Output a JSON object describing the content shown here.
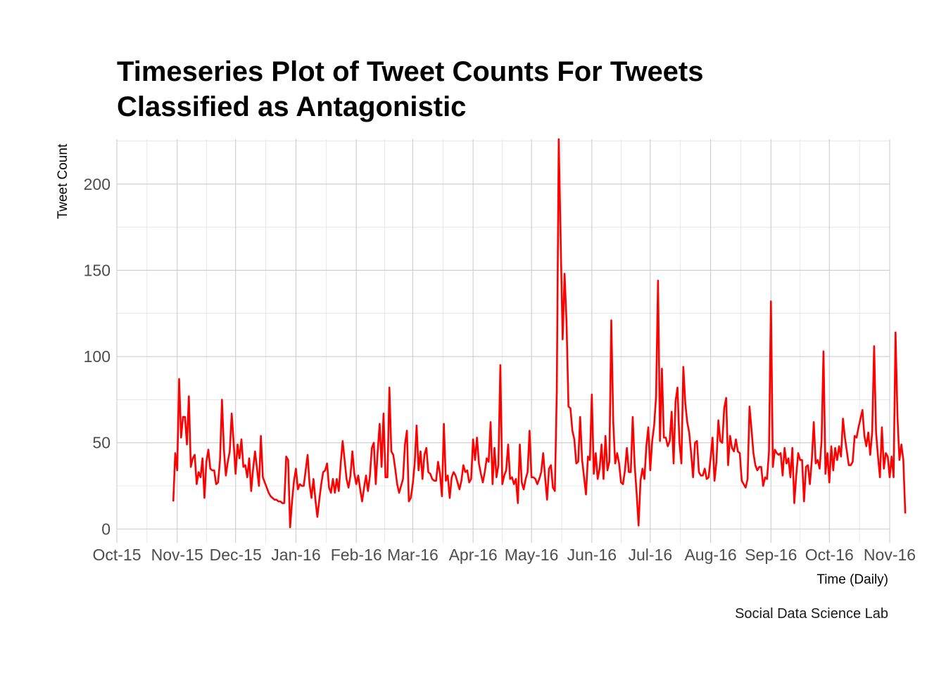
{
  "chart_data": {
    "type": "line",
    "title_lines": [
      "Timeseries Plot of Tweet Counts For Tweets",
      "Classified as Antagonistic"
    ],
    "xlabel": "Time (Daily)",
    "ylabel": "Tweet Count",
    "caption": "Social Data Science Lab",
    "x_start": "2015-10-30",
    "x_step_days": 1,
    "xlim": [
      "2015-10-01",
      "2016-11-01"
    ],
    "ylim": [
      -8,
      226
    ],
    "x_ticks": [
      {
        "date": "2015-10-01",
        "label": "Oct-15"
      },
      {
        "date": "2015-11-01",
        "label": "Nov-15"
      },
      {
        "date": "2015-12-01",
        "label": "Dec-15"
      },
      {
        "date": "2016-01-01",
        "label": "Jan-16"
      },
      {
        "date": "2016-02-01",
        "label": "Feb-16"
      },
      {
        "date": "2016-03-01",
        "label": "Mar-16"
      },
      {
        "date": "2016-04-01",
        "label": "Apr-16"
      },
      {
        "date": "2016-05-01",
        "label": "May-16"
      },
      {
        "date": "2016-06-01",
        "label": "Jun-16"
      },
      {
        "date": "2016-07-01",
        "label": "Jul-16"
      },
      {
        "date": "2016-08-01",
        "label": "Aug-16"
      },
      {
        "date": "2016-09-01",
        "label": "Sep-16"
      },
      {
        "date": "2016-10-01",
        "label": "Oct-16"
      },
      {
        "date": "2016-11-01",
        "label": "Nov-16"
      }
    ],
    "y_ticks": [
      0,
      50,
      100,
      150,
      200
    ],
    "grid": true,
    "legend": "none",
    "series": [
      {
        "color": "#ff0000",
        "values": [
          16,
          44,
          34,
          87,
          53,
          65,
          65,
          49,
          77,
          36,
          41,
          43,
          26,
          33,
          30,
          41,
          18,
          39,
          46,
          35,
          34,
          34,
          26,
          27,
          40,
          75,
          46,
          31,
          39,
          45,
          67,
          50,
          32,
          49,
          41,
          52,
          36,
          37,
          30,
          41,
          22,
          35,
          45,
          35,
          25,
          54,
          30,
          27,
          24,
          21,
          19,
          18,
          17,
          17,
          16,
          16,
          15,
          15,
          42,
          40,
          1,
          16,
          28,
          35,
          23,
          26,
          25,
          25,
          34,
          43,
          26,
          18,
          29,
          17,
          7,
          17,
          26,
          33,
          34,
          38,
          24,
          21,
          29,
          21,
          29,
          22,
          38,
          51,
          40,
          29,
          24,
          31,
          45,
          32,
          26,
          31,
          23,
          16,
          24,
          31,
          22,
          31,
          47,
          50,
          26,
          45,
          61,
          36,
          67,
          30,
          30,
          82,
          45,
          43,
          35,
          26,
          21,
          25,
          29,
          49,
          57,
          16,
          18,
          26,
          38,
          60,
          34,
          45,
          29,
          43,
          47,
          33,
          32,
          29,
          28,
          28,
          39,
          32,
          19,
          61,
          28,
          31,
          18,
          30,
          33,
          31,
          27,
          23,
          28,
          37,
          33,
          34,
          27,
          29,
          52,
          40,
          53,
          38,
          32,
          27,
          33,
          41,
          39,
          62,
          26,
          47,
          30,
          37,
          95,
          26,
          31,
          34,
          49,
          29,
          30,
          26,
          29,
          15,
          49,
          27,
          23,
          29,
          33,
          57,
          30,
          30,
          29,
          26,
          29,
          33,
          44,
          30,
          17,
          35,
          37,
          24,
          22,
          80,
          226,
          166,
          110,
          148,
          120,
          71,
          70,
          57,
          52,
          38,
          39,
          65,
          40,
          30,
          20,
          42,
          40,
          78,
          32,
          44,
          29,
          35,
          49,
          29,
          54,
          34,
          39,
          121,
          62,
          38,
          44,
          38,
          27,
          26,
          34,
          47,
          33,
          33,
          65,
          37,
          21,
          2,
          28,
          35,
          29,
          48,
          59,
          34,
          51,
          60,
          77,
          144,
          51,
          93,
          53,
          53,
          48,
          51,
          68,
          38,
          74,
          82,
          50,
          38,
          94,
          73,
          62,
          56,
          44,
          30,
          50,
          51,
          33,
          31,
          31,
          35,
          29,
          30,
          41,
          53,
          28,
          39,
          63,
          51,
          50,
          70,
          76,
          37,
          54,
          47,
          45,
          52,
          45,
          44,
          28,
          26,
          24,
          29,
          71,
          58,
          44,
          37,
          34,
          36,
          36,
          25,
          30,
          29,
          45,
          132,
          36,
          46,
          44,
          43,
          44,
          31,
          47,
          38,
          41,
          30,
          47,
          15,
          31,
          44,
          40,
          40,
          16,
          36,
          37,
          26,
          40,
          62,
          38,
          40,
          35,
          51,
          103,
          32,
          44,
          27,
          48,
          34,
          47,
          40,
          48,
          42,
          64,
          53,
          45,
          37,
          37,
          39,
          54,
          53,
          59,
          64,
          69,
          54,
          48,
          56,
          43,
          56,
          106,
          56,
          42,
          30,
          59,
          35,
          44,
          42,
          30,
          42,
          30,
          114,
          65,
          40,
          49,
          40,
          9
        ]
      }
    ]
  }
}
